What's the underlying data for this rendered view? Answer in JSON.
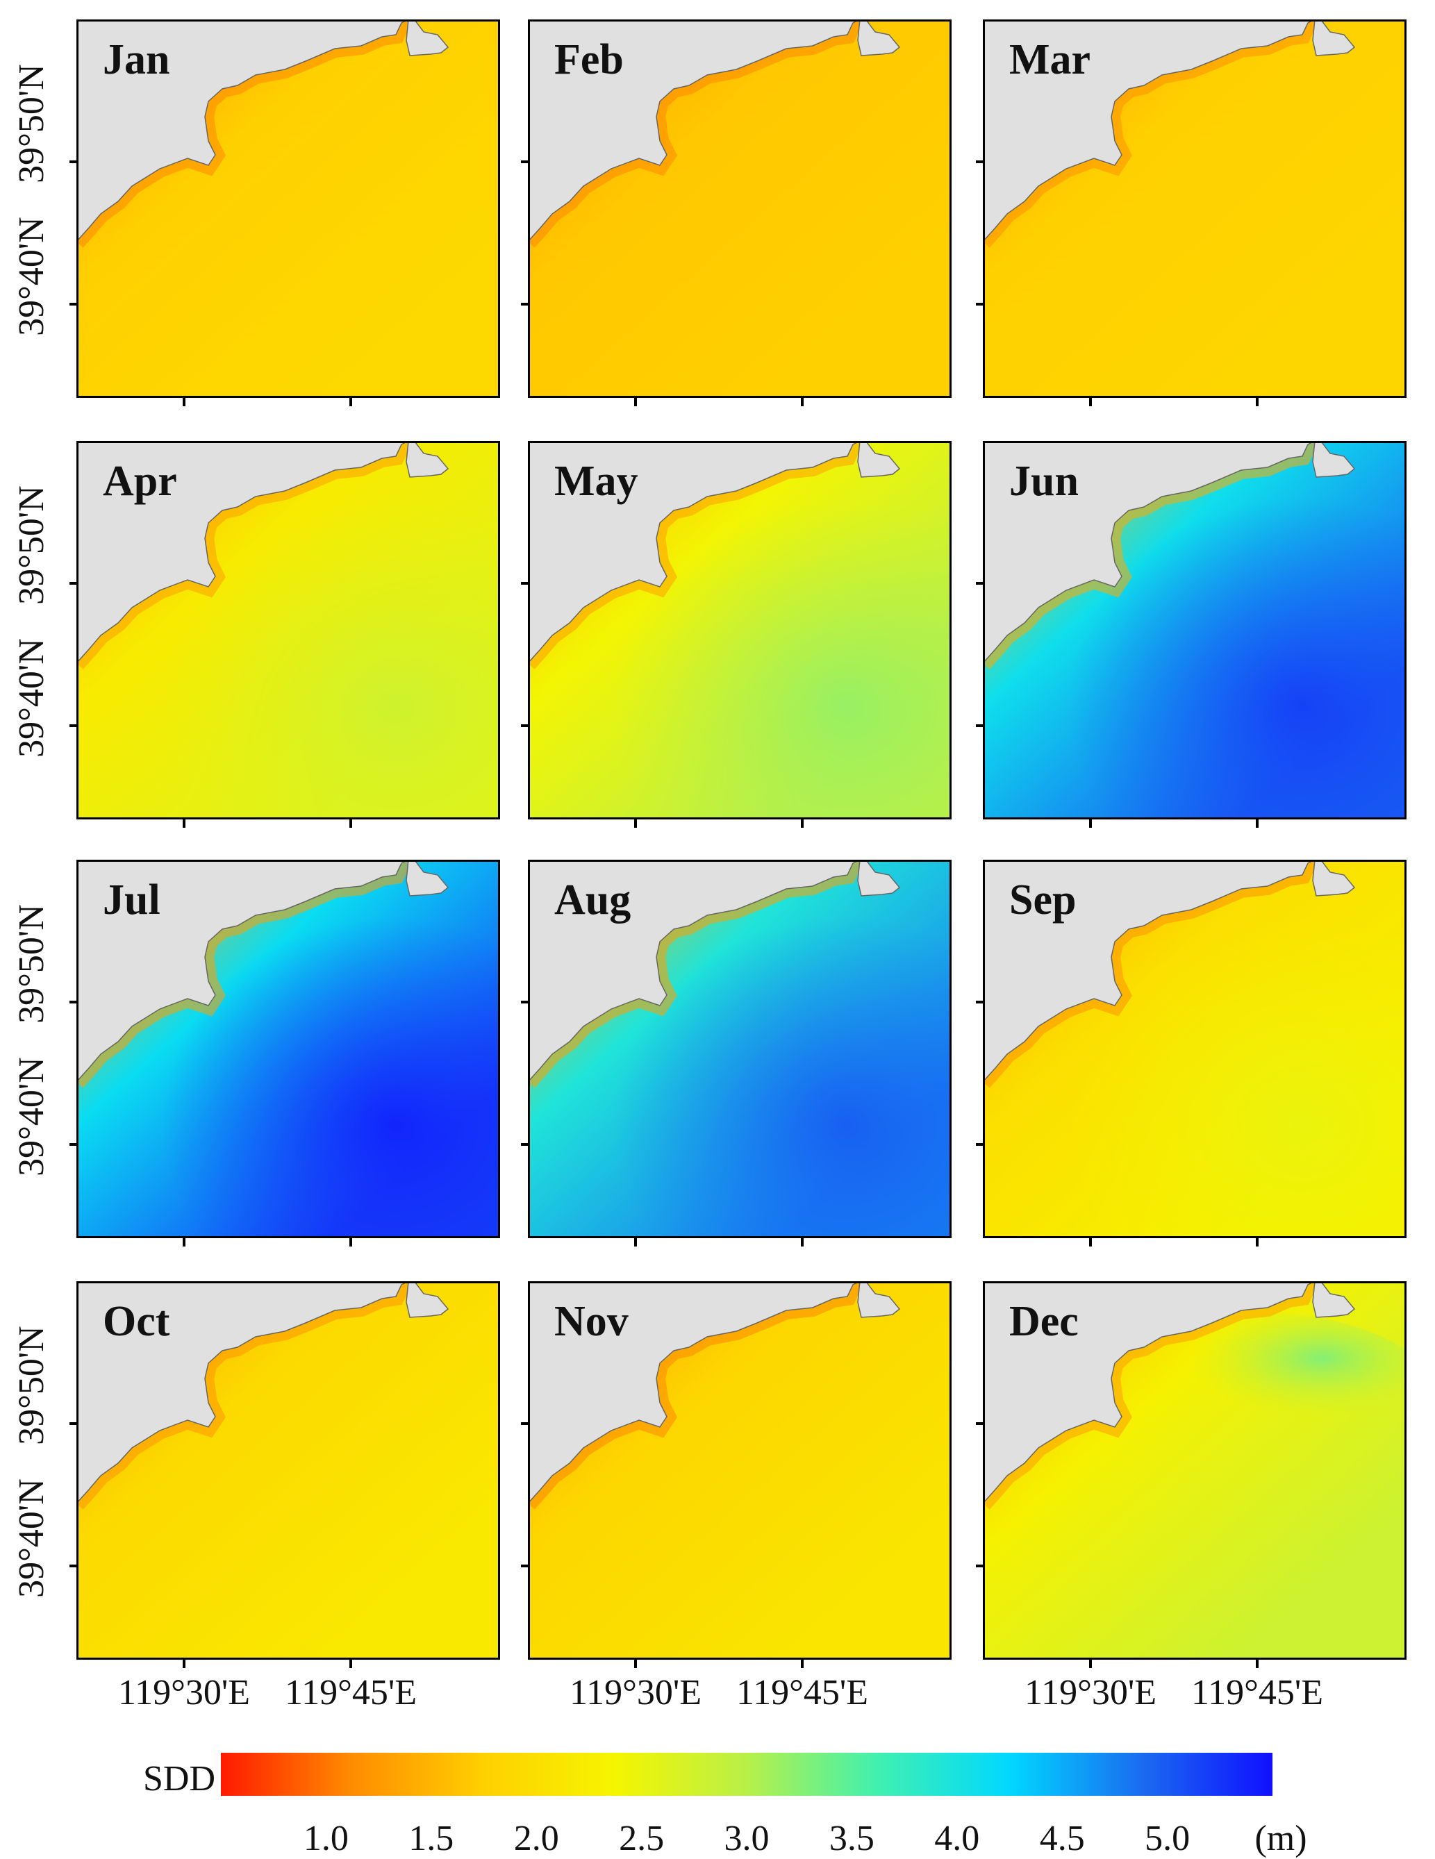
{
  "figure": {
    "latitude_labels": [
      "39°50'N",
      "39°40'N"
    ],
    "longitude_labels": [
      "119°30'E",
      "119°45'E"
    ],
    "panels": [
      {
        "month": "Jan",
        "sdd_offshore": 1.9,
        "sdd_coast": 1.3,
        "pattern": "uniform"
      },
      {
        "month": "Feb",
        "sdd_offshore": 1.75,
        "sdd_coast": 1.3,
        "pattern": "uniform"
      },
      {
        "month": "Mar",
        "sdd_offshore": 1.85,
        "sdd_coast": 1.35,
        "pattern": "uniform"
      },
      {
        "month": "Apr",
        "sdd_offshore": 2.6,
        "sdd_coast": 1.5,
        "pattern": "gradient"
      },
      {
        "month": "May",
        "sdd_offshore": 3.0,
        "sdd_coast": 1.5,
        "pattern": "gradient"
      },
      {
        "month": "Jun",
        "sdd_offshore": 5.0,
        "sdd_coast": 1.6,
        "pattern": "strong"
      },
      {
        "month": "Jul",
        "sdd_offshore": 5.2,
        "sdd_coast": 1.5,
        "pattern": "strong"
      },
      {
        "month": "Aug",
        "sdd_offshore": 4.8,
        "sdd_coast": 1.5,
        "pattern": "strong"
      },
      {
        "month": "Sep",
        "sdd_offshore": 2.3,
        "sdd_coast": 1.4,
        "pattern": "gradient"
      },
      {
        "month": "Oct",
        "sdd_offshore": 2.15,
        "sdd_coast": 1.4,
        "pattern": "uniform"
      },
      {
        "month": "Nov",
        "sdd_offshore": 2.1,
        "sdd_coast": 1.3,
        "pattern": "uniform"
      },
      {
        "month": "Dec",
        "sdd_offshore": 2.8,
        "sdd_coast": 1.5,
        "pattern": "plume"
      }
    ],
    "colorbar": {
      "label": "SDD",
      "unit": "(m)",
      "min": 0.5,
      "max": 5.5,
      "ticks": [
        "1.0",
        "1.5",
        "2.0",
        "2.5",
        "3.0",
        "3.5",
        "4.0",
        "4.5",
        "5.0"
      ],
      "tick_values": [
        1.0,
        1.5,
        2.0,
        2.5,
        3.0,
        3.5,
        4.0,
        4.5,
        5.0
      ],
      "colors": [
        "#ff1a00",
        "#ff8c00",
        "#ffd000",
        "#f5f500",
        "#b8f048",
        "#40f0b0",
        "#00d8ff",
        "#1a6cf0",
        "#1010ff"
      ]
    },
    "land_color": "#e0e0e0"
  }
}
